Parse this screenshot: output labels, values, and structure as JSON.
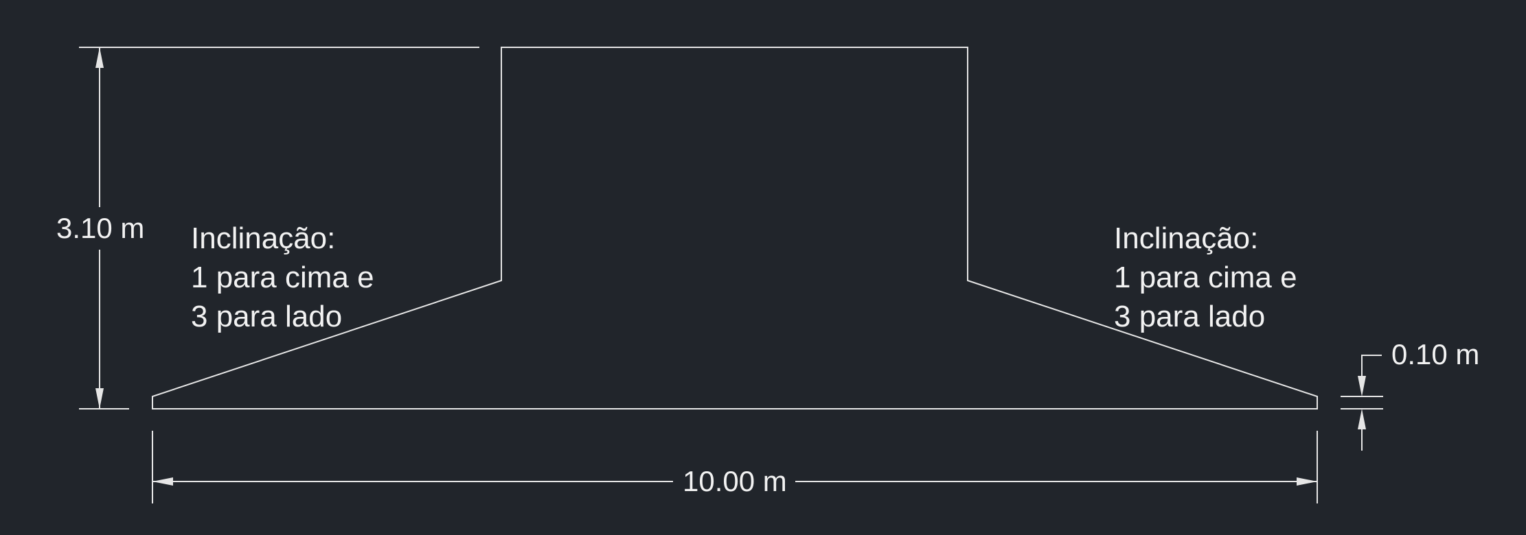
{
  "drawing": {
    "background_color": "#21252b",
    "line_color": "#e6e6e6",
    "text_color": "#f2f2f2"
  },
  "dimensions": {
    "height": "3.10 m",
    "width": "10.00 m",
    "thickness": "0.10 m"
  },
  "annotations": {
    "left_slope": {
      "line1": "Inclinação:",
      "line2": "1 para cima e",
      "line3": "3 para lado"
    },
    "right_slope": {
      "line1": "Inclinação:",
      "line2": "1 para cima e",
      "line3": "3 para lado"
    }
  }
}
